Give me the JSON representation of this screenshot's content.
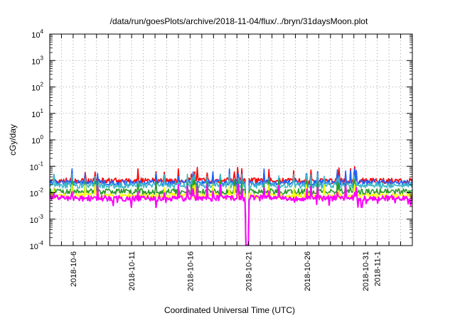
{
  "chart_data": {
    "type": "line",
    "title": "/data/run/goesPlots/archive/2018-11-04/flux/../bryn/31daysMoon.plot",
    "xlabel": "Coordinated Universal Time (UTC)",
    "ylabel": "cGy/day",
    "yscale": "log",
    "ylim": [
      0.0001,
      10000
    ],
    "xlim": [
      "2018-10-04",
      "2018-11-04"
    ],
    "y_tick_labels": [
      {
        "base": "10",
        "exp": "-4"
      },
      {
        "base": "10",
        "exp": "-3"
      },
      {
        "base": "10",
        "exp": "-2"
      },
      {
        "base": "10",
        "exp": "-1"
      },
      {
        "base": "10",
        "exp": "0"
      },
      {
        "base": "10",
        "exp": "1"
      },
      {
        "base": "10",
        "exp": "2"
      },
      {
        "base": "10",
        "exp": "3"
      },
      {
        "base": "10",
        "exp": "4"
      }
    ],
    "x_tick_labels": [
      "2018-10-6",
      "2018-10-11",
      "2018-10-16",
      "2018-10-21",
      "2018-10-26",
      "2018-10-31",
      "2018-11-1"
    ],
    "grid": true,
    "series": [
      {
        "color": "#ff0000",
        "typical_value": 0.028,
        "min_value": 0.02,
        "max_value": 0.1
      },
      {
        "color": "#1e62ff",
        "typical_value": 0.024,
        "min_value": 0.017,
        "max_value": 0.08
      },
      {
        "color": "#3cb8c8",
        "typical_value": 0.019,
        "min_value": 0.014,
        "max_value": 0.05
      },
      {
        "color": "#2a9a2a",
        "typical_value": 0.011,
        "min_value": 0.007,
        "max_value": 0.03
      },
      {
        "color": "#ffff00",
        "typical_value": 0.0075,
        "min_value": 0.005,
        "max_value": 0.02
      },
      {
        "color": "#ff00ff",
        "typical_value": 0.0062,
        "min_value": 0.0001,
        "max_value": 0.02
      }
    ],
    "dropout": {
      "start": "2018-10-20T18:00",
      "end": "2018-10-21T00:00",
      "min_value": 0.0001
    }
  }
}
